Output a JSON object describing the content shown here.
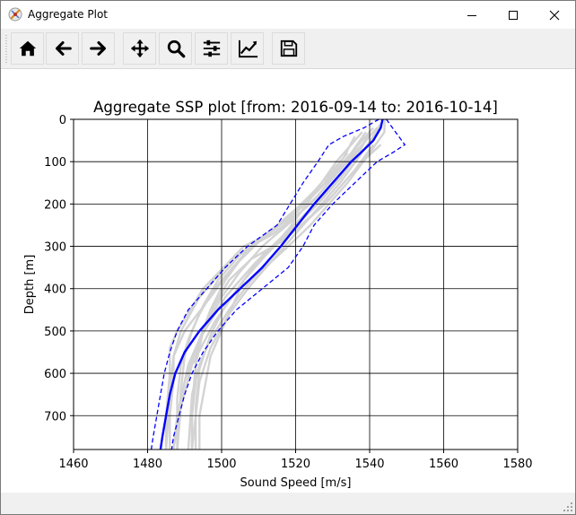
{
  "window": {
    "title": "Aggregate Plot"
  },
  "toolbar": {
    "buttons": [
      {
        "icon": "home-icon",
        "action": "home"
      },
      {
        "icon": "back-arrow-icon",
        "action": "back"
      },
      {
        "icon": "forward-arrow-icon",
        "action": "forward"
      },
      {
        "icon": "pan-icon",
        "action": "pan"
      },
      {
        "icon": "zoom-icon",
        "action": "zoom"
      },
      {
        "icon": "configure-subplots-icon",
        "action": "subplots"
      },
      {
        "icon": "edit-axis-icon",
        "action": "customize"
      },
      {
        "icon": "save-icon",
        "action": "save"
      }
    ]
  },
  "chart_data": {
    "type": "line",
    "title": "Aggregate SSP plot [from: 2016-09-14 to: 2016-10-14]",
    "xlabel": "Sound Speed [m/s]",
    "ylabel": "Depth [m]",
    "xlim": [
      1460,
      1580
    ],
    "ylim": [
      780,
      0
    ],
    "xticks": [
      "1460",
      "1480",
      "1500",
      "1520",
      "1540",
      "1560",
      "1580"
    ],
    "yticks": [
      "0",
      "100",
      "200",
      "300",
      "400",
      "500",
      "600",
      "700"
    ],
    "grid": true,
    "colors": {
      "mean": "#0000ff",
      "bounds": "#0000ff",
      "profiles": "#d3d3d3"
    },
    "mean": {
      "depth": [
        0,
        20,
        50,
        80,
        100,
        150,
        200,
        250,
        300,
        350,
        400,
        450,
        500,
        550,
        600,
        650,
        700,
        750,
        780
      ],
      "speed": [
        1543.5,
        1543,
        1541,
        1537.5,
        1535,
        1530,
        1525,
        1520.5,
        1516,
        1511,
        1505,
        1499,
        1494,
        1490,
        1487.5,
        1486,
        1485,
        1484,
        1483.5
      ]
    },
    "upper_bound": {
      "depth": [
        0,
        30,
        60,
        80,
        100,
        150,
        200,
        250,
        300,
        350,
        400,
        450,
        500,
        550,
        600,
        650,
        700,
        750,
        780
      ],
      "speed": [
        1544.5,
        1547,
        1549.5,
        1546,
        1542,
        1536,
        1530,
        1525,
        1522,
        1518,
        1511,
        1504,
        1499,
        1495,
        1492,
        1490,
        1488.5,
        1487,
        1486.5
      ]
    },
    "lower_bound": {
      "depth": [
        0,
        20,
        40,
        60,
        100,
        150,
        200,
        250,
        300,
        350,
        400,
        450,
        500,
        550,
        600,
        650,
        700,
        750,
        780
      ],
      "speed": [
        1542.5,
        1538.5,
        1533,
        1529,
        1526,
        1522,
        1518.5,
        1515,
        1507,
        1501,
        1496,
        1491,
        1488,
        1486,
        1484.5,
        1483.5,
        1482.5,
        1481.5,
        1481
      ]
    },
    "profiles": [
      {
        "depth": [
          0,
          30,
          80,
          150,
          250,
          300,
          380,
          450,
          520,
          580,
          650,
          780
        ],
        "speed": [
          1544,
          1544,
          1540,
          1534,
          1524,
          1518,
          1508,
          1502,
          1497,
          1494,
          1492,
          1491
        ]
      },
      {
        "depth": [
          20,
          60,
          120,
          200,
          270,
          300,
          350,
          420,
          500,
          560,
          650,
          780
        ],
        "speed": [
          1541,
          1537,
          1532,
          1524,
          1514,
          1508,
          1503,
          1497,
          1490,
          1487,
          1486,
          1485
        ]
      },
      {
        "depth": [
          30,
          80,
          150,
          220,
          270,
          300,
          400,
          500,
          540,
          600,
          700,
          780
        ],
        "speed": [
          1539,
          1535,
          1528,
          1520,
          1513,
          1506,
          1495,
          1488,
          1486,
          1486,
          1485,
          1485
        ]
      },
      {
        "depth": [
          40,
          90,
          160,
          230,
          280,
          330,
          420,
          500,
          560,
          620,
          700,
          780
        ],
        "speed": [
          1536,
          1533,
          1527,
          1519,
          1511,
          1503,
          1494,
          1489,
          1487,
          1487,
          1486,
          1486
        ]
      },
      {
        "depth": [
          30,
          60,
          100,
          150,
          200,
          260,
          320,
          380,
          480,
          580,
          680,
          780
        ],
        "speed": [
          1538,
          1535,
          1531,
          1527,
          1523,
          1518,
          1512,
          1506,
          1498,
          1492,
          1489,
          1488
        ]
      },
      {
        "depth": [
          50,
          100,
          150,
          220,
          270,
          320,
          380,
          450,
          520,
          560,
          620,
          700,
          780
        ],
        "speed": [
          1539,
          1534,
          1528,
          1520,
          1512,
          1506,
          1501,
          1497,
          1494,
          1493,
          1493,
          1492,
          1492
        ]
      },
      {
        "depth": [
          60,
          100,
          160,
          200,
          260,
          310,
          380,
          440,
          560,
          700,
          780
        ],
        "speed": [
          1543,
          1538,
          1532,
          1528,
          1520,
          1512,
          1506,
          1503,
          1497,
          1494,
          1494
        ]
      },
      {
        "depth": [
          40,
          80,
          120,
          180,
          240,
          300,
          360,
          420,
          500,
          580,
          700,
          780
        ],
        "speed": [
          1540,
          1536,
          1532,
          1526,
          1519,
          1511,
          1505,
          1500,
          1495,
          1491,
          1488,
          1487
        ]
      },
      {
        "depth": [
          20,
          50,
          100,
          160,
          220,
          280,
          340,
          420,
          520,
          620,
          720,
          780
        ],
        "speed": [
          1542,
          1539,
          1535,
          1530,
          1523,
          1516,
          1509,
          1501,
          1494,
          1490,
          1488,
          1487
        ]
      },
      {
        "depth": [
          70,
          110,
          160,
          220,
          280,
          320,
          380,
          440,
          500,
          560,
          640,
          780
        ],
        "speed": [
          1538,
          1533,
          1527,
          1519,
          1511,
          1505,
          1499,
          1495,
          1492,
          1490,
          1489,
          1488
        ]
      },
      {
        "depth": [
          60,
          120,
          180,
          240,
          290,
          330,
          380,
          440,
          500,
          580,
          680,
          780
        ],
        "speed": [
          1541,
          1536,
          1530,
          1523,
          1516,
          1508,
          1502,
          1498,
          1495,
          1493,
          1492,
          1492
        ]
      },
      {
        "depth": [
          10,
          40,
          90,
          150,
          210,
          270,
          330,
          390,
          460,
          540,
          620,
          780
        ],
        "speed": [
          1543,
          1541,
          1537,
          1532,
          1526,
          1520,
          1514,
          1508,
          1502,
          1497,
          1494,
          1492
        ]
      },
      {
        "depth": [
          80,
          120,
          170,
          230,
          290,
          350,
          400,
          460,
          520,
          580,
          660,
          780
        ],
        "speed": [
          1534,
          1530,
          1525,
          1518,
          1510,
          1503,
          1498,
          1494,
          1491,
          1489,
          1488,
          1488
        ]
      },
      {
        "depth": [
          30,
          80,
          140,
          200,
          260,
          320,
          380,
          440,
          510,
          590,
          680,
          780
        ],
        "speed": [
          1540,
          1537,
          1532,
          1526,
          1519,
          1512,
          1506,
          1501,
          1497,
          1494,
          1493,
          1493
        ]
      }
    ]
  }
}
